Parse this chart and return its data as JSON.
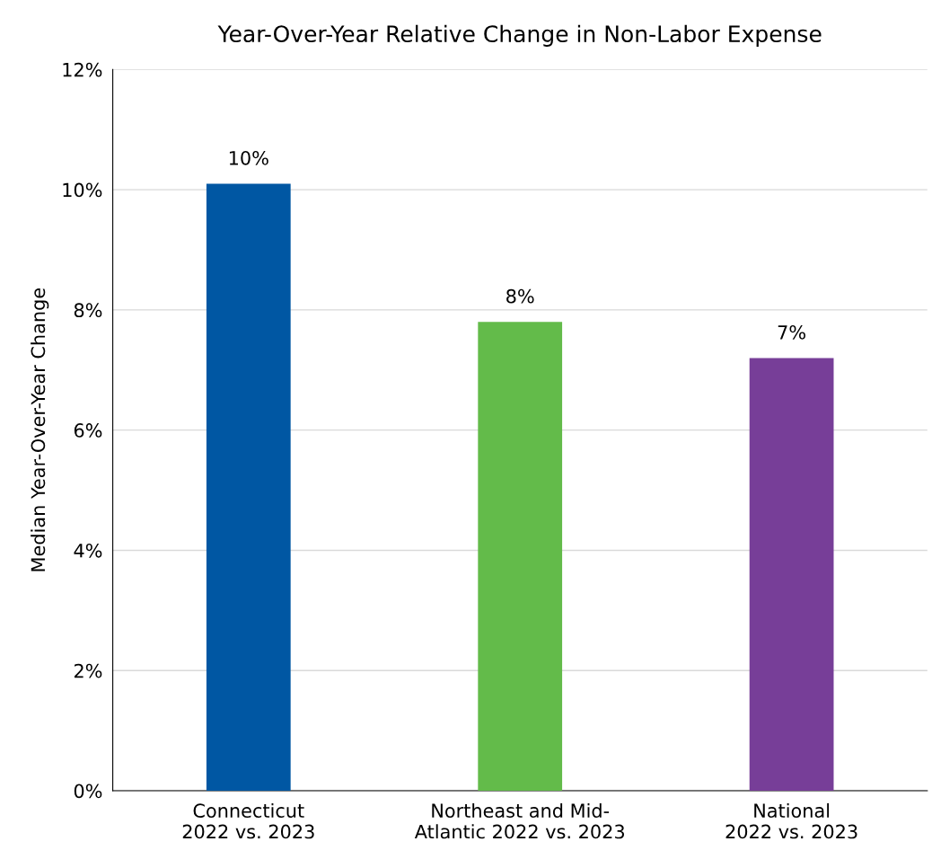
{
  "chart_data": {
    "type": "bar",
    "title": "Year-Over-Year Relative Change in Non-Labor Expense",
    "ylabel": "Median Year-Over-Year Change",
    "categories": [
      "Connecticut\n2022 vs. 2023",
      "Northeast and Mid-\nAtlantic 2022 vs. 2023",
      "National\n2022 vs. 2023"
    ],
    "values": [
      10.1,
      7.8,
      7.2
    ],
    "colors": [
      "#0057a3",
      "#63bb4a",
      "#773e98"
    ],
    "value_labels": [
      "10%",
      "8%",
      "7%"
    ],
    "ylim": [
      0,
      12
    ],
    "yticks": [
      {
        "value": 0,
        "label": "0%"
      },
      {
        "value": 2,
        "label": "2%"
      },
      {
        "value": 4,
        "label": "4%"
      },
      {
        "value": 6,
        "label": "6%"
      },
      {
        "value": 8,
        "label": "8%"
      },
      {
        "value": 10,
        "label": "10%"
      },
      {
        "value": 12,
        "label": "12%"
      }
    ],
    "grid": "y"
  }
}
